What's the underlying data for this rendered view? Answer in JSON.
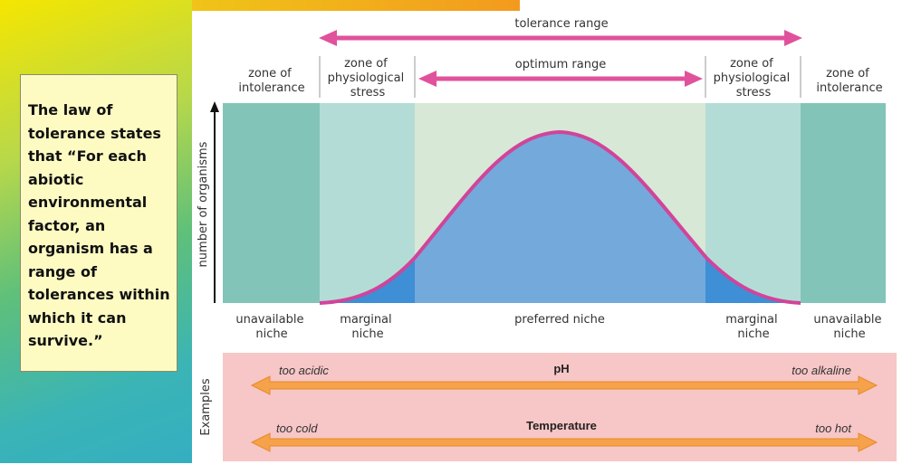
{
  "text_box": {
    "text": "The law of tolerance states that “For each abiotic environmental factor, an organism has a range of tolerances within which it can survive.”"
  },
  "diagram": {
    "tolerance_range": "tolerance range",
    "optimum_range": "optimum range",
    "zones": {
      "left_intolerance": [
        "zone of",
        "intolerance"
      ],
      "left_stress": [
        "zone of",
        "physiological",
        "stress"
      ],
      "right_stress": [
        "zone of",
        "physiological",
        "stress"
      ],
      "right_intolerance": [
        "zone of",
        "intolerance"
      ]
    },
    "y_axis_label": "number of organisms",
    "niches": {
      "left_unavailable": [
        "unavailable",
        "niche"
      ],
      "left_marginal": [
        "marginal",
        "niche"
      ],
      "preferred": "preferred niche",
      "right_marginal": [
        "marginal",
        "niche"
      ],
      "right_unavailable": [
        "unavailable",
        "niche"
      ]
    },
    "examples_label": "Examples",
    "examples": [
      {
        "title": "pH",
        "left": "too acidic",
        "right": "too alkaline"
      },
      {
        "title": "Temperature",
        "left": "too cold",
        "right": "too hot"
      }
    ],
    "colors": {
      "arrow_magenta": "#e0529c",
      "curve": "#d1449a",
      "fill_blue": "#74a9dc",
      "fill_blue_dark": "#3e8fd6",
      "zone_intolerance": "#83c4b8",
      "zone_stress": "#b4dcd6",
      "zone_optimum": "#d8e8d6",
      "examples_bg": "#f7c6c6",
      "orange_arrow": "#f5a24a"
    }
  }
}
